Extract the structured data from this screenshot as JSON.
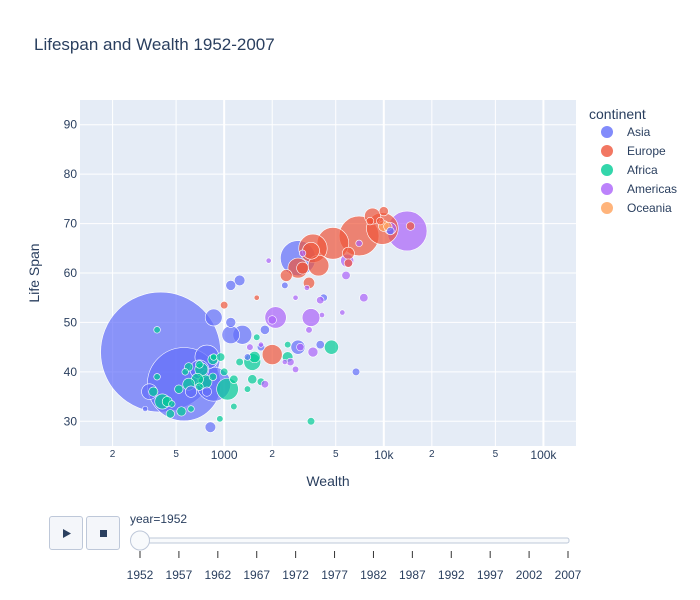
{
  "chart_data": {
    "type": "scatter",
    "title": "Lifespan and Wealth 1952-2007",
    "xlabel": "Wealth",
    "ylabel": "Life Span",
    "x_scale": "log",
    "xlim": [
      125,
      160000
    ],
    "ylim": [
      25,
      95
    ],
    "x_ticks": [
      {
        "v": 200,
        "label": "2"
      },
      {
        "v": 500,
        "label": "5"
      },
      {
        "v": 1000,
        "label": "1000"
      },
      {
        "v": 2000,
        "label": "2"
      },
      {
        "v": 5000,
        "label": "5"
      },
      {
        "v": 10000,
        "label": "10k"
      },
      {
        "v": 20000,
        "label": "2"
      },
      {
        "v": 50000,
        "label": "5"
      },
      {
        "v": 100000,
        "label": "100k"
      }
    ],
    "y_ticks": [
      30,
      40,
      50,
      60,
      70,
      80,
      90
    ],
    "grid": true,
    "legend_title": "continent",
    "legend_position": "top-right",
    "series": [
      {
        "name": "Asia",
        "color": "#636efa",
        "points": [
          {
            "x": 400,
            "y": 44,
            "s": 1000
          },
          {
            "x": 560,
            "y": 37.5,
            "s": 372
          },
          {
            "x": 2900,
            "y": 63,
            "s": 86
          },
          {
            "x": 780,
            "y": 43,
            "s": 40
          },
          {
            "x": 860,
            "y": 37.5,
            "s": 80
          },
          {
            "x": 700,
            "y": 40.5,
            "s": 25
          },
          {
            "x": 340,
            "y": 36,
            "s": 17
          },
          {
            "x": 1100,
            "y": 47.5,
            "s": 22
          },
          {
            "x": 1300,
            "y": 47.5,
            "s": 25
          },
          {
            "x": 860,
            "y": 51,
            "s": 20
          },
          {
            "x": 2900,
            "y": 45,
            "s": 14
          },
          {
            "x": 1250,
            "y": 58.5,
            "s": 8
          },
          {
            "x": 1100,
            "y": 57.5,
            "s": 7
          },
          {
            "x": 1100,
            "y": 50,
            "s": 7
          },
          {
            "x": 820,
            "y": 28.8,
            "s": 8
          },
          {
            "x": 620,
            "y": 36,
            "s": 9
          },
          {
            "x": 780,
            "y": 36,
            "s": 6
          },
          {
            "x": 4000,
            "y": 45.5,
            "s": 5
          },
          {
            "x": 6700,
            "y": 40,
            "s": 4
          },
          {
            "x": 4200,
            "y": 55,
            "s": 4
          },
          {
            "x": 1700,
            "y": 45,
            "s": 4
          },
          {
            "x": 1800,
            "y": 48.5,
            "s": 6
          },
          {
            "x": 11000,
            "y": 68.5,
            "s": 4
          },
          {
            "x": 320,
            "y": 32.5,
            "s": 2
          },
          {
            "x": 1400,
            "y": 43,
            "s": 3
          },
          {
            "x": 2400,
            "y": 57.5,
            "s": 3
          }
        ]
      },
      {
        "name": "Europe",
        "color": "#ef553b",
        "points": [
          {
            "x": 7000,
            "y": 67.5,
            "s": 110
          },
          {
            "x": 4800,
            "y": 66,
            "s": 70
          },
          {
            "x": 9800,
            "y": 69,
            "s": 70
          },
          {
            "x": 3600,
            "y": 65,
            "s": 56
          },
          {
            "x": 3900,
            "y": 61.5,
            "s": 30
          },
          {
            "x": 2900,
            "y": 61,
            "s": 28
          },
          {
            "x": 2000,
            "y": 43.5,
            "s": 28
          },
          {
            "x": 8500,
            "y": 71.5,
            "s": 18
          },
          {
            "x": 3500,
            "y": 64.5,
            "s": 20
          },
          {
            "x": 6000,
            "y": 64,
            "s": 10
          },
          {
            "x": 10000,
            "y": 72.5,
            "s": 6
          },
          {
            "x": 3100,
            "y": 61,
            "s": 10
          },
          {
            "x": 2450,
            "y": 59.5,
            "s": 10
          },
          {
            "x": 3400,
            "y": 58,
            "s": 9
          },
          {
            "x": 6000,
            "y": 62,
            "s": 5
          },
          {
            "x": 8200,
            "y": 70.5,
            "s": 4
          },
          {
            "x": 14700,
            "y": 69.5,
            "s": 5
          },
          {
            "x": 9500,
            "y": 70.5,
            "s": 4
          },
          {
            "x": 1000,
            "y": 53.5,
            "s": 4
          },
          {
            "x": 1600,
            "y": 55,
            "s": 2
          }
        ]
      },
      {
        "name": "Africa",
        "color": "#00cc96",
        "points": [
          {
            "x": 1050,
            "y": 36.5,
            "s": 33
          },
          {
            "x": 1500,
            "y": 42,
            "s": 20
          },
          {
            "x": 410,
            "y": 34,
            "s": 16
          },
          {
            "x": 4700,
            "y": 45,
            "s": 14
          },
          {
            "x": 760,
            "y": 38,
            "s": 13
          },
          {
            "x": 720,
            "y": 40.5,
            "s": 12
          },
          {
            "x": 680,
            "y": 38.5,
            "s": 10
          },
          {
            "x": 600,
            "y": 37.5,
            "s": 10
          },
          {
            "x": 1550,
            "y": 43,
            "s": 9
          },
          {
            "x": 2500,
            "y": 43,
            "s": 8
          },
          {
            "x": 850,
            "y": 42.5,
            "s": 7
          },
          {
            "x": 950,
            "y": 43,
            "s": 5
          },
          {
            "x": 600,
            "y": 41,
            "s": 5
          },
          {
            "x": 520,
            "y": 36.5,
            "s": 5
          },
          {
            "x": 440,
            "y": 34,
            "s": 7
          },
          {
            "x": 360,
            "y": 36,
            "s": 6
          },
          {
            "x": 1150,
            "y": 38.5,
            "s": 5
          },
          {
            "x": 1500,
            "y": 38.5,
            "s": 6
          },
          {
            "x": 700,
            "y": 41.5,
            "s": 4
          },
          {
            "x": 460,
            "y": 31.5,
            "s": 5
          },
          {
            "x": 540,
            "y": 32,
            "s": 6
          },
          {
            "x": 3500,
            "y": 30,
            "s": 4
          },
          {
            "x": 850,
            "y": 39,
            "s": 4
          },
          {
            "x": 1250,
            "y": 42,
            "s": 4
          },
          {
            "x": 1000,
            "y": 40,
            "s": 4
          },
          {
            "x": 1400,
            "y": 36.5,
            "s": 3
          },
          {
            "x": 380,
            "y": 39,
            "s": 3
          },
          {
            "x": 700,
            "y": 37,
            "s": 4
          },
          {
            "x": 1150,
            "y": 33,
            "s": 3
          },
          {
            "x": 620,
            "y": 32.5,
            "s": 3
          },
          {
            "x": 940,
            "y": 30.5,
            "s": 3
          },
          {
            "x": 470,
            "y": 33.5,
            "s": 3
          },
          {
            "x": 1700,
            "y": 38,
            "s": 4
          },
          {
            "x": 2500,
            "y": 45.5,
            "s": 3
          },
          {
            "x": 570,
            "y": 40,
            "s": 3
          },
          {
            "x": 860,
            "y": 43,
            "s": 3
          },
          {
            "x": 380,
            "y": 48.5,
            "s": 3
          },
          {
            "x": 1600,
            "y": 47,
            "s": 3
          }
        ]
      },
      {
        "name": "Americas",
        "color": "#ab63fa",
        "points": [
          {
            "x": 14000,
            "y": 68.5,
            "s": 110
          },
          {
            "x": 2100,
            "y": 51,
            "s": 32
          },
          {
            "x": 3500,
            "y": 51,
            "s": 22
          },
          {
            "x": 5900,
            "y": 62.5,
            "s": 12
          },
          {
            "x": 11000,
            "y": 69,
            "s": 10
          },
          {
            "x": 3600,
            "y": 44,
            "s": 7
          },
          {
            "x": 7500,
            "y": 55,
            "s": 5
          },
          {
            "x": 5800,
            "y": 59.5,
            "s": 5
          },
          {
            "x": 4000,
            "y": 54.5,
            "s": 4
          },
          {
            "x": 2000,
            "y": 50.5,
            "s": 5
          },
          {
            "x": 2600,
            "y": 42,
            "s": 4
          },
          {
            "x": 1800,
            "y": 37.5,
            "s": 4
          },
          {
            "x": 3000,
            "y": 45,
            "s": 4
          },
          {
            "x": 1450,
            "y": 45,
            "s": 3
          },
          {
            "x": 7000,
            "y": 66,
            "s": 3
          },
          {
            "x": 2800,
            "y": 40.5,
            "s": 3
          },
          {
            "x": 3100,
            "y": 64,
            "s": 3
          },
          {
            "x": 1900,
            "y": 62.5,
            "s": 2
          },
          {
            "x": 2400,
            "y": 42,
            "s": 2
          },
          {
            "x": 3300,
            "y": 57,
            "s": 2
          },
          {
            "x": 4100,
            "y": 51.5,
            "s": 2
          },
          {
            "x": 2800,
            "y": 55,
            "s": 2
          },
          {
            "x": 5500,
            "y": 52,
            "s": 2
          },
          {
            "x": 3400,
            "y": 48.5,
            "s": 3
          },
          {
            "x": 1700,
            "y": 45.5,
            "s": 2
          }
        ]
      },
      {
        "name": "Oceania",
        "color": "#ffa15a",
        "points": [
          {
            "x": 10000,
            "y": 69.5,
            "s": 8
          },
          {
            "x": 10600,
            "y": 69.4,
            "s": 5
          }
        ]
      }
    ],
    "slider": {
      "current_label": "year=1952",
      "ticks": [
        "1952",
        "1957",
        "1962",
        "1967",
        "1972",
        "1977",
        "1982",
        "1987",
        "1992",
        "1997",
        "2002",
        "2007"
      ],
      "value": "1952"
    }
  },
  "controls": {
    "play_icon": "play-icon",
    "stop_icon": "stop-icon"
  }
}
